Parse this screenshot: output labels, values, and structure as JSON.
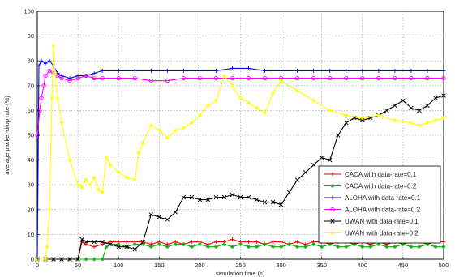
{
  "chart_data": {
    "type": "line",
    "title": "",
    "xlabel": "simulation time (s)",
    "ylabel": "average packet-drop rate (%)",
    "xlim": [
      0,
      500
    ],
    "ylim": [
      0,
      100
    ],
    "xticks": [
      0,
      50,
      100,
      150,
      200,
      250,
      300,
      350,
      400,
      450,
      500
    ],
    "yticks": [
      0,
      10,
      20,
      30,
      40,
      50,
      60,
      70,
      80,
      90,
      100
    ],
    "grid": true,
    "legend_position": "bottom-right",
    "series": [
      {
        "name": "CACA with data-rate=0.1",
        "color": "#ff0000",
        "marker": "plus",
        "x": [
          0,
          10,
          20,
          30,
          40,
          50,
          55,
          60,
          70,
          80,
          90,
          100,
          110,
          120,
          130,
          140,
          150,
          160,
          170,
          180,
          190,
          200,
          210,
          220,
          230,
          240,
          250,
          260,
          270,
          280,
          290,
          300,
          310,
          320,
          330,
          340,
          350,
          360,
          370,
          380,
          390,
          400,
          410,
          420,
          430,
          440,
          450,
          460,
          470,
          480,
          490,
          500
        ],
        "y": [
          0,
          0,
          0,
          0,
          0,
          0,
          7,
          6,
          5,
          6,
          7,
          7,
          7,
          7,
          7,
          6,
          7,
          6,
          7,
          6,
          7,
          7,
          6,
          7,
          7,
          8,
          7,
          7,
          7,
          6,
          7,
          7,
          6,
          7,
          6,
          7,
          7,
          6,
          7,
          7,
          6,
          7,
          6,
          7,
          6,
          7,
          6,
          7,
          7,
          6,
          7,
          7
        ]
      },
      {
        "name": "CACA with data-rate=0.2",
        "color": "#00b000",
        "marker": "star",
        "x": [
          0,
          10,
          20,
          30,
          40,
          50,
          60,
          70,
          80,
          85,
          90,
          100,
          110,
          120,
          130,
          140,
          150,
          160,
          170,
          180,
          190,
          200,
          210,
          220,
          230,
          240,
          250,
          260,
          270,
          280,
          290,
          300,
          310,
          320,
          330,
          340,
          350,
          360,
          370,
          380,
          390,
          400,
          410,
          420,
          430,
          440,
          450,
          460,
          470,
          480,
          490,
          500
        ],
        "y": [
          0,
          0,
          0,
          0,
          0,
          0,
          0,
          0,
          0,
          5,
          6,
          6,
          5,
          6,
          6,
          5,
          6,
          5,
          6,
          6,
          5,
          6,
          5,
          5,
          6,
          5,
          6,
          5,
          5,
          6,
          5,
          5,
          6,
          5,
          5,
          6,
          5,
          6,
          5,
          5,
          6,
          5,
          5,
          6,
          5,
          5,
          6,
          5,
          5,
          6,
          5,
          5
        ]
      },
      {
        "name": "ALOHA with data-rate=0.1",
        "color": "#0000ff",
        "marker": "plus",
        "x": [
          0,
          2,
          5,
          10,
          15,
          20,
          25,
          30,
          40,
          50,
          60,
          70,
          80,
          100,
          120,
          140,
          160,
          180,
          200,
          220,
          240,
          260,
          280,
          300,
          320,
          340,
          360,
          380,
          400,
          420,
          440,
          460,
          480,
          500
        ],
        "y": [
          0,
          78,
          80,
          79,
          80,
          78,
          75,
          74,
          73,
          74,
          74,
          75,
          76,
          76,
          76,
          76,
          76,
          76,
          76,
          76,
          77,
          77,
          76,
          76,
          76,
          76,
          76,
          76,
          76,
          76,
          76,
          76,
          76,
          76
        ]
      },
      {
        "name": "ALOHA with data-rate=0.2",
        "color": "#ff00ff",
        "marker": "circle",
        "x": [
          0,
          3,
          5,
          8,
          10,
          15,
          20,
          25,
          30,
          40,
          50,
          60,
          70,
          80,
          100,
          120,
          140,
          160,
          180,
          200,
          220,
          240,
          260,
          280,
          300,
          320,
          340,
          360,
          380,
          400,
          420,
          440,
          460,
          480,
          500
        ],
        "y": [
          50,
          60,
          65,
          70,
          74,
          76,
          75,
          74,
          73,
          72,
          73,
          74,
          73,
          73,
          73,
          73,
          72,
          72,
          73,
          73,
          73,
          73,
          73,
          73,
          73,
          73,
          73,
          73,
          73,
          73,
          73,
          73,
          73,
          73,
          73
        ]
      },
      {
        "name": "UWAN with data-rate=0.1",
        "color": "#000000",
        "marker": "x",
        "x": [
          0,
          10,
          20,
          30,
          40,
          50,
          55,
          60,
          70,
          80,
          90,
          100,
          110,
          120,
          130,
          140,
          150,
          160,
          170,
          180,
          190,
          200,
          210,
          220,
          230,
          240,
          250,
          260,
          270,
          280,
          290,
          300,
          310,
          320,
          330,
          340,
          350,
          360,
          370,
          380,
          390,
          400,
          410,
          420,
          430,
          440,
          450,
          460,
          470,
          480,
          490,
          500
        ],
        "y": [
          0,
          0,
          0,
          0,
          0,
          0,
          8,
          7,
          7,
          7,
          6,
          5,
          5,
          4,
          7,
          18,
          17,
          16,
          19,
          25,
          25,
          24,
          24,
          25,
          25,
          26,
          25,
          25,
          24,
          23,
          23,
          22,
          27,
          32,
          35,
          38,
          41,
          40,
          50,
          55,
          57,
          56,
          57,
          58,
          60,
          62,
          64,
          61,
          60,
          62,
          65,
          66
        ]
      },
      {
        "name": "UWAN with data-rate=0.2",
        "color": "#ffff00",
        "marker": "star",
        "x": [
          0,
          10,
          12,
          15,
          18,
          20,
          22,
          25,
          30,
          40,
          50,
          55,
          60,
          65,
          70,
          75,
          80,
          85,
          90,
          100,
          110,
          120,
          125,
          130,
          140,
          150,
          160,
          170,
          180,
          190,
          200,
          210,
          220,
          230,
          240,
          250,
          260,
          270,
          280,
          290,
          300,
          320,
          340,
          360,
          380,
          400,
          420,
          440,
          460,
          470,
          480,
          490,
          500
        ],
        "y": [
          0,
          0,
          5,
          20,
          65,
          86,
          75,
          65,
          55,
          40,
          30,
          29,
          32,
          30,
          33,
          28,
          27,
          41,
          38,
          35,
          33,
          32,
          43,
          47,
          54,
          52,
          49,
          52,
          53,
          55,
          58,
          62,
          64,
          74,
          70,
          65,
          63,
          61,
          59,
          67,
          72,
          68,
          64,
          60,
          58,
          57,
          58,
          56,
          55,
          54,
          55,
          56,
          57
        ]
      }
    ]
  }
}
